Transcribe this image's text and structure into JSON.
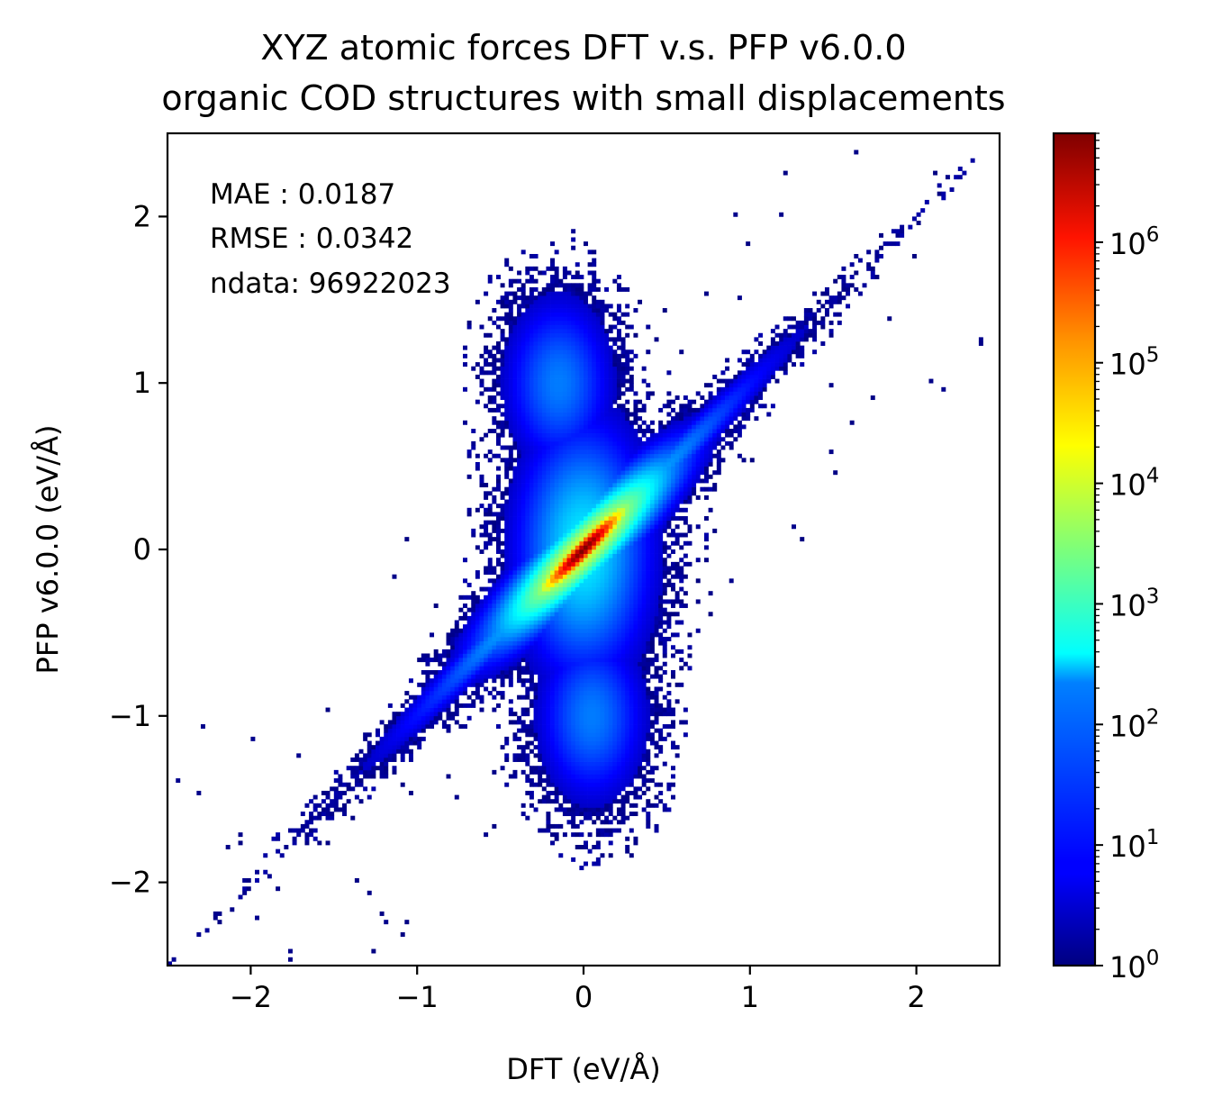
{
  "chart_data": {
    "type": "heatmap",
    "title": "XYZ atomic forces DFT v.s. PFP v6.0.0",
    "subtitle": "organic COD structures with small displacements",
    "xlabel": "DFT (eV/Å)",
    "ylabel": "PFP v6.0.0 (eV/Å)",
    "xlim": [
      -2.5,
      2.5
    ],
    "ylim": [
      -2.5,
      2.5
    ],
    "x_ticks": [
      -2,
      -1,
      0,
      1,
      2
    ],
    "y_ticks": [
      -2,
      -1,
      0,
      1,
      2
    ],
    "x_tick_labels": [
      "−2",
      "−1",
      "0",
      "1",
      "2"
    ],
    "y_tick_labels": [
      "−2",
      "−1",
      "0",
      "1",
      "2"
    ],
    "grid": false,
    "colormap": "jet",
    "color_scale": "log",
    "colorbar": {
      "range": [
        1,
        8000000
      ],
      "major_ticks": [
        1,
        10,
        100,
        1000,
        10000,
        100000,
        1000000
      ],
      "tick_mantissa": "10",
      "tick_exponents": [
        "0",
        "1",
        "2",
        "3",
        "4",
        "5",
        "6"
      ]
    },
    "annotations": [
      "MAE : 0.0187",
      "RMSE : 0.0342",
      "ndata: 96922023"
    ],
    "distribution": {
      "description_of_density": "dense diagonal band along y = x",
      "peak_count_approx": 8000000,
      "peak_location": [
        0,
        0
      ]
    }
  }
}
